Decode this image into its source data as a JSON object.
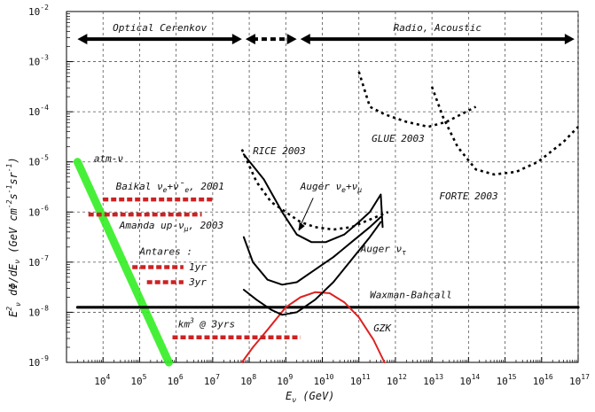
{
  "chart_data": {
    "type": "line",
    "title": "",
    "xlabel": {
      "main": "E",
      "sub": "ν",
      "units": "(GeV)"
    },
    "ylabel": {
      "main": "E",
      "sup": "2",
      "sub": "ν",
      "mid": "dΦ/dE",
      "sub2": "ν",
      "units": "(GeV cm",
      "units_sup1": "-2",
      "units_s": "s",
      "units_sup2": "-1",
      "units_sr": "sr",
      "units_sup3": "-1",
      "units_end": ")"
    },
    "x_log_range": [
      3,
      17
    ],
    "y_log_range": [
      -9,
      -2
    ],
    "x_ticks": [
      4,
      5,
      6,
      7,
      8,
      9,
      10,
      11,
      12,
      13,
      14,
      15,
      16,
      17
    ],
    "y_ticks": [
      -2,
      -3,
      -4,
      -5,
      -6,
      -7,
      -8,
      -9
    ],
    "tick_base": "10",
    "grid": "dashed",
    "regions": [
      {
        "label": "Optical Cerenkov",
        "x_from": 3.3,
        "x_to": 7.8
      },
      {
        "label": "",
        "x_from": 7.9,
        "x_to": 9.3
      },
      {
        "label": "Radio, Acoustic",
        "x_from": 9.4,
        "x_to": 16.9
      }
    ],
    "series": [
      {
        "name": "atm-ν",
        "style": "thick",
        "color": "#33ee22",
        "points": [
          [
            3.3,
            -5.0
          ],
          [
            5.8,
            -9.0
          ]
        ]
      },
      {
        "name": "Waxman-Bahcall",
        "style": "solid",
        "color": "#000000",
        "points": [
          [
            3.3,
            -7.9
          ],
          [
            17.0,
            -7.9
          ]
        ]
      },
      {
        "name": "GZK",
        "style": "solid",
        "color": "#dd2222",
        "points": [
          [
            7.8,
            -9.0
          ],
          [
            8.1,
            -8.7
          ],
          [
            8.5,
            -8.35
          ],
          [
            9.0,
            -7.9
          ],
          [
            9.4,
            -7.7
          ],
          [
            9.8,
            -7.6
          ],
          [
            10.2,
            -7.62
          ],
          [
            10.6,
            -7.8
          ],
          [
            11.0,
            -8.1
          ],
          [
            11.4,
            -8.55
          ],
          [
            11.7,
            -9.0
          ]
        ]
      },
      {
        "name": "RICE 2003",
        "style": "dotted",
        "color": "#000000",
        "points": [
          [
            7.8,
            -4.75
          ],
          [
            8.2,
            -5.4
          ],
          [
            8.6,
            -5.8
          ],
          [
            9.0,
            -6.0
          ],
          [
            9.4,
            -6.2
          ],
          [
            9.8,
            -6.3
          ],
          [
            10.3,
            -6.35
          ],
          [
            10.8,
            -6.3
          ],
          [
            11.3,
            -6.15
          ],
          [
            11.8,
            -6.0
          ]
        ]
      },
      {
        "name": "GLUE 2003",
        "style": "dotted",
        "color": "#000000",
        "points": [
          [
            11.0,
            -3.2
          ],
          [
            11.3,
            -3.9
          ],
          [
            11.7,
            -4.05
          ],
          [
            12.3,
            -4.2
          ],
          [
            12.9,
            -4.3
          ],
          [
            13.4,
            -4.2
          ],
          [
            13.8,
            -4.05
          ],
          [
            14.2,
            -3.9
          ]
        ]
      },
      {
        "name": "FORTE 2003",
        "style": "dotted",
        "color": "#000000",
        "points": [
          [
            13.0,
            -3.5
          ],
          [
            13.3,
            -4.1
          ],
          [
            13.7,
            -4.7
          ],
          [
            14.2,
            -5.15
          ],
          [
            14.7,
            -5.25
          ],
          [
            15.3,
            -5.2
          ],
          [
            15.9,
            -5.0
          ],
          [
            16.6,
            -4.6
          ],
          [
            17.0,
            -4.3
          ]
        ]
      },
      {
        "name": "Auger νe+νμ",
        "style": "solid",
        "color": "#000000",
        "points": [
          [
            7.85,
            -4.85
          ],
          [
            8.4,
            -5.35
          ],
          [
            8.9,
            -6.0
          ],
          [
            9.3,
            -6.45
          ],
          [
            9.7,
            -6.6
          ],
          [
            10.1,
            -6.6
          ],
          [
            10.6,
            -6.45
          ],
          [
            11.0,
            -6.2
          ],
          [
            11.3,
            -6.0
          ],
          [
            11.6,
            -5.65
          ],
          [
            11.65,
            -6.3
          ]
        ]
      },
      {
        "name": "Auger ντ",
        "style": "solid",
        "color": "#000000",
        "points": [
          [
            7.85,
            -6.5
          ],
          [
            8.1,
            -7.0
          ],
          [
            8.5,
            -7.35
          ],
          [
            8.9,
            -7.45
          ],
          [
            9.3,
            -7.4
          ],
          [
            9.8,
            -7.15
          ],
          [
            10.3,
            -6.9
          ],
          [
            10.8,
            -6.6
          ],
          [
            11.3,
            -6.3
          ],
          [
            11.6,
            -6.1
          ]
        ]
      },
      {
        "name": "",
        "style": "solid",
        "color": "#000000",
        "points": [
          [
            7.85,
            -7.55
          ],
          [
            8.2,
            -7.75
          ],
          [
            8.6,
            -7.95
          ],
          [
            8.9,
            -8.05
          ],
          [
            9.3,
            -8.0
          ],
          [
            9.8,
            -7.75
          ],
          [
            10.3,
            -7.4
          ],
          [
            10.8,
            -6.95
          ],
          [
            11.3,
            -6.5
          ],
          [
            11.6,
            -6.2
          ]
        ]
      },
      {
        "name": "Baikal νe+ν̄e, 2001",
        "style": "redbar",
        "color": "#cc2222",
        "points": [
          [
            4.0,
            -5.75
          ],
          [
            7.0,
            -5.75
          ]
        ]
      },
      {
        "name": "Amanda up-νμ, 2003",
        "style": "redbar",
        "color": "#cc2222",
        "points": [
          [
            3.6,
            -6.05
          ],
          [
            6.7,
            -6.05
          ]
        ]
      },
      {
        "name": "Antares : 1yr",
        "style": "redbar",
        "color": "#cc2222",
        "points": [
          [
            4.8,
            -7.1
          ],
          [
            6.2,
            -7.1
          ]
        ]
      },
      {
        "name": "3yr",
        "style": "redbar",
        "color": "#cc2222",
        "points": [
          [
            5.2,
            -7.4
          ],
          [
            6.2,
            -7.4
          ]
        ]
      },
      {
        "name": "km³ @ 3yrs",
        "style": "redbar",
        "color": "#cc2222",
        "points": [
          [
            5.9,
            -8.5
          ],
          [
            9.4,
            -8.5
          ]
        ]
      }
    ],
    "labels": [
      {
        "text": "atm-ν",
        "at": [
          3.75,
          -5.0
        ]
      },
      {
        "text": "Baikal ν",
        "sub": "e",
        "mid": "+ν̄",
        "sub2": "e",
        "tail": ", 2001",
        "at": [
          4.35,
          -5.55
        ]
      },
      {
        "text": "Amanda up-ν",
        "sub": "μ",
        "tail": ", 2003",
        "at": [
          4.45,
          -6.33
        ]
      },
      {
        "text": "Antares :",
        "at": [
          5.0,
          -6.85
        ]
      },
      {
        "text": "1yr",
        "at": [
          6.35,
          -7.16
        ]
      },
      {
        "text": "3yr",
        "at": [
          6.35,
          -7.46
        ]
      },
      {
        "text": "km",
        "sup": "3",
        "tail": " @ 3yrs",
        "at": [
          6.05,
          -8.3
        ]
      },
      {
        "text": "RICE 2003",
        "at": [
          8.1,
          -4.85
        ]
      },
      {
        "text": "GLUE 2003",
        "at": [
          11.35,
          -4.6
        ]
      },
      {
        "text": "FORTE 2003",
        "at": [
          13.2,
          -5.75
        ]
      },
      {
        "text": "Auger ν",
        "sub": "e",
        "mid": "+ν",
        "sub2": "μ",
        "at": [
          9.4,
          -5.55
        ]
      },
      {
        "text": "Auger ν",
        "sub": "τ",
        "at": [
          11.05,
          -6.8
        ]
      },
      {
        "text": "Waxman-Bahcall",
        "at": [
          11.3,
          -7.72
        ]
      },
      {
        "text": "GZK",
        "at": [
          11.4,
          -8.38
        ]
      }
    ]
  }
}
